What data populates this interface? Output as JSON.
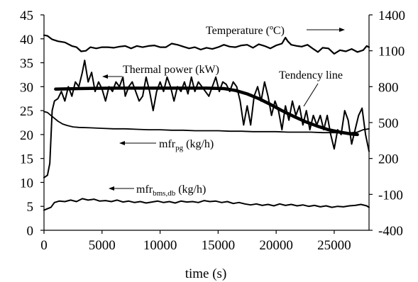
{
  "chart_data": {
    "type": "line",
    "xlabel": "time (s)",
    "x_ticks": [
      "0",
      "5000",
      "10000",
      "15000",
      "20000",
      "25000"
    ],
    "y_left_ticks": [
      "0",
      "5",
      "10",
      "15",
      "20",
      "25",
      "30",
      "35",
      "40",
      "45"
    ],
    "y_right_ticks": [
      "-400",
      "-100",
      "200",
      "500",
      "800",
      "1100",
      "1400"
    ],
    "xlim": [
      0,
      28000
    ],
    "ylim_left": [
      0,
      45
    ],
    "ylim_right": [
      -400,
      1400
    ],
    "grid": false,
    "annotations": {
      "temperature": "Temperature (ºC)",
      "thermal_power": "Thermal power (kW)",
      "tendency": "Tendency line",
      "mfr_pg_main": "mfr",
      "mfr_pg_sub": "pg",
      "mfr_pg_unit": " (kg/h)",
      "mfr_bms_main": "mfr",
      "mfr_bms_sub": "bms,db",
      "mfr_bms_unit": " (kg/h)"
    },
    "series": [
      {
        "axis": "right",
        "stroke": 2.2,
        "points": [
          [
            0,
            1230
          ],
          [
            300,
            1225
          ],
          [
            700,
            1195
          ],
          [
            1200,
            1180
          ],
          [
            1800,
            1170
          ],
          [
            2400,
            1140
          ],
          [
            2800,
            1130
          ],
          [
            3200,
            1095
          ],
          [
            3600,
            1100
          ],
          [
            4000,
            1130
          ],
          [
            4500,
            1120
          ],
          [
            5000,
            1130
          ],
          [
            5500,
            1130
          ],
          [
            6000,
            1125
          ],
          [
            6500,
            1135
          ],
          [
            7000,
            1140
          ],
          [
            7500,
            1120
          ],
          [
            8000,
            1140
          ],
          [
            8500,
            1130
          ],
          [
            9000,
            1140
          ],
          [
            9500,
            1145
          ],
          [
            10000,
            1130
          ],
          [
            10500,
            1130
          ],
          [
            11000,
            1160
          ],
          [
            11500,
            1150
          ],
          [
            12000,
            1135
          ],
          [
            12500,
            1120
          ],
          [
            13000,
            1130
          ],
          [
            13500,
            1110
          ],
          [
            14000,
            1125
          ],
          [
            14500,
            1115
          ],
          [
            15000,
            1130
          ],
          [
            15500,
            1150
          ],
          [
            16000,
            1135
          ],
          [
            16500,
            1130
          ],
          [
            17000,
            1145
          ],
          [
            17500,
            1150
          ],
          [
            18000,
            1125
          ],
          [
            18500,
            1155
          ],
          [
            19000,
            1140
          ],
          [
            19500,
            1120
          ],
          [
            20000,
            1145
          ],
          [
            20500,
            1160
          ],
          [
            20800,
            1210
          ],
          [
            21000,
            1180
          ],
          [
            21300,
            1150
          ],
          [
            21800,
            1140
          ],
          [
            22200,
            1135
          ],
          [
            22700,
            1150
          ],
          [
            23200,
            1115
          ],
          [
            23600,
            1090
          ],
          [
            24000,
            1125
          ],
          [
            24500,
            1120
          ],
          [
            25000,
            1075
          ],
          [
            25500,
            1105
          ],
          [
            26000,
            1095
          ],
          [
            26500,
            1115
          ],
          [
            27000,
            1090
          ],
          [
            27500,
            1105
          ],
          [
            27800,
            1140
          ],
          [
            28000,
            1130
          ]
        ]
      },
      {
        "axis": "left",
        "stroke": 2.0,
        "points": [
          [
            0,
            11
          ],
          [
            300,
            11.5
          ],
          [
            500,
            14
          ],
          [
            700,
            25
          ],
          [
            900,
            27
          ],
          [
            1200,
            27.5
          ],
          [
            1500,
            29
          ],
          [
            1800,
            27
          ],
          [
            2100,
            30
          ],
          [
            2400,
            28
          ],
          [
            2700,
            31
          ],
          [
            3000,
            30
          ],
          [
            3300,
            33
          ],
          [
            3500,
            35.5
          ],
          [
            3800,
            31
          ],
          [
            4100,
            33
          ],
          [
            4400,
            29
          ],
          [
            4700,
            31
          ],
          [
            5000,
            29.5
          ],
          [
            5300,
            27
          ],
          [
            5600,
            30
          ],
          [
            5900,
            29
          ],
          [
            6200,
            31
          ],
          [
            6500,
            30
          ],
          [
            6800,
            32
          ],
          [
            7000,
            28
          ],
          [
            7300,
            30
          ],
          [
            7600,
            31
          ],
          [
            7900,
            29
          ],
          [
            8200,
            27
          ],
          [
            8500,
            28
          ],
          [
            8800,
            32
          ],
          [
            9100,
            29
          ],
          [
            9400,
            25
          ],
          [
            9700,
            29
          ],
          [
            10000,
            31
          ],
          [
            10300,
            29
          ],
          [
            10600,
            32
          ],
          [
            10900,
            30
          ],
          [
            11200,
            27
          ],
          [
            11500,
            30
          ],
          [
            11800,
            29
          ],
          [
            12100,
            31
          ],
          [
            12400,
            28.5
          ],
          [
            12700,
            32
          ],
          [
            13000,
            29
          ],
          [
            13300,
            31
          ],
          [
            13600,
            30
          ],
          [
            13900,
            29
          ],
          [
            14200,
            28
          ],
          [
            14500,
            30
          ],
          [
            14800,
            32
          ],
          [
            15100,
            29
          ],
          [
            15400,
            31
          ],
          [
            15700,
            30.5
          ],
          [
            16000,
            29
          ],
          [
            16300,
            31
          ],
          [
            16600,
            30
          ],
          [
            16900,
            27
          ],
          [
            17200,
            22
          ],
          [
            17500,
            26
          ],
          [
            17800,
            22
          ],
          [
            18100,
            28
          ],
          [
            18400,
            30
          ],
          [
            18700,
            27
          ],
          [
            19000,
            31
          ],
          [
            19300,
            28
          ],
          [
            19600,
            24
          ],
          [
            19900,
            27
          ],
          [
            20200,
            25
          ],
          [
            20500,
            21
          ],
          [
            20800,
            26
          ],
          [
            21100,
            23
          ],
          [
            21400,
            27
          ],
          [
            21700,
            24
          ],
          [
            22000,
            26
          ],
          [
            22300,
            22
          ],
          [
            22600,
            25
          ],
          [
            22900,
            21
          ],
          [
            23200,
            24
          ],
          [
            23500,
            22
          ],
          [
            23800,
            24
          ],
          [
            24100,
            21
          ],
          [
            24400,
            24
          ],
          [
            24700,
            20
          ],
          [
            25000,
            17
          ],
          [
            25300,
            21
          ],
          [
            25600,
            20
          ],
          [
            25900,
            25
          ],
          [
            26200,
            23
          ],
          [
            26500,
            18
          ],
          [
            26800,
            21
          ],
          [
            27100,
            24
          ],
          [
            27400,
            25.5
          ],
          [
            27700,
            20
          ],
          [
            28000,
            16.5
          ]
        ]
      },
      {
        "axis": "left",
        "stroke": 4.5,
        "points": [
          [
            1000,
            29.5
          ],
          [
            3000,
            29.6
          ],
          [
            6000,
            29.7
          ],
          [
            9000,
            29.7
          ],
          [
            12000,
            29.7
          ],
          [
            14000,
            29.7
          ],
          [
            15500,
            29.6
          ],
          [
            16500,
            29.2
          ],
          [
            17500,
            28.5
          ],
          [
            18500,
            27.5
          ],
          [
            19500,
            26.3
          ],
          [
            20500,
            25.0
          ],
          [
            21500,
            23.8
          ],
          [
            22500,
            22.7
          ],
          [
            23500,
            21.8
          ],
          [
            24500,
            21.0
          ],
          [
            25500,
            20.5
          ],
          [
            26500,
            20.1
          ],
          [
            27000,
            20.0
          ]
        ]
      },
      {
        "axis": "left",
        "stroke": 1.8,
        "points": [
          [
            0,
            24.8
          ],
          [
            300,
            24.6
          ],
          [
            600,
            24
          ],
          [
            900,
            23.4
          ],
          [
            1200,
            22.8
          ],
          [
            1600,
            22.2
          ],
          [
            2000,
            21.9
          ],
          [
            2500,
            21.6
          ],
          [
            3000,
            21.5
          ],
          [
            4000,
            21.4
          ],
          [
            5000,
            21.3
          ],
          [
            6000,
            21.2
          ],
          [
            7000,
            21.2
          ],
          [
            8000,
            21.1
          ],
          [
            9000,
            21.0
          ],
          [
            10000,
            21.0
          ],
          [
            11000,
            20.9
          ],
          [
            12000,
            20.9
          ],
          [
            13000,
            20.8
          ],
          [
            14000,
            20.8
          ],
          [
            15000,
            20.8
          ],
          [
            16000,
            20.7
          ],
          [
            17000,
            20.7
          ],
          [
            18000,
            20.6
          ],
          [
            19000,
            20.6
          ],
          [
            20000,
            20.6
          ],
          [
            21000,
            20.5
          ],
          [
            22000,
            20.5
          ],
          [
            23000,
            20.5
          ],
          [
            24000,
            20.4
          ],
          [
            25000,
            20.4
          ],
          [
            26000,
            20.3
          ],
          [
            27000,
            20.5
          ],
          [
            27500,
            21.0
          ],
          [
            28000,
            21.2
          ]
        ]
      },
      {
        "axis": "left",
        "stroke": 2.0,
        "points": [
          [
            0,
            4.2
          ],
          [
            300,
            4.5
          ],
          [
            600,
            4.8
          ],
          [
            900,
            5.8
          ],
          [
            1300,
            6.1
          ],
          [
            1800,
            6.0
          ],
          [
            2300,
            6.3
          ],
          [
            2800,
            6.0
          ],
          [
            3300,
            6.6
          ],
          [
            3800,
            6.3
          ],
          [
            4300,
            6.5
          ],
          [
            4800,
            6.1
          ],
          [
            5300,
            6.2
          ],
          [
            5800,
            6.0
          ],
          [
            6300,
            6.3
          ],
          [
            6800,
            5.9
          ],
          [
            7300,
            6.1
          ],
          [
            7800,
            5.8
          ],
          [
            8300,
            6.0
          ],
          [
            8800,
            5.7
          ],
          [
            9300,
            5.9
          ],
          [
            9800,
            6.1
          ],
          [
            10300,
            5.8
          ],
          [
            10800,
            6.0
          ],
          [
            11300,
            5.7
          ],
          [
            11800,
            6.1
          ],
          [
            12300,
            5.9
          ],
          [
            12800,
            6.0
          ],
          [
            13300,
            5.8
          ],
          [
            13800,
            6.2
          ],
          [
            14300,
            6.0
          ],
          [
            14800,
            6.1
          ],
          [
            15300,
            5.8
          ],
          [
            15800,
            6.0
          ],
          [
            16300,
            5.6
          ],
          [
            16800,
            5.8
          ],
          [
            17300,
            5.5
          ],
          [
            17800,
            5.3
          ],
          [
            18300,
            5.5
          ],
          [
            18800,
            5.2
          ],
          [
            19300,
            5.4
          ],
          [
            19800,
            5.1
          ],
          [
            20300,
            5.5
          ],
          [
            20800,
            5.2
          ],
          [
            21300,
            5.4
          ],
          [
            21800,
            5.1
          ],
          [
            22300,
            5.3
          ],
          [
            22800,
            5.0
          ],
          [
            23300,
            5.2
          ],
          [
            23800,
            4.9
          ],
          [
            24300,
            5.1
          ],
          [
            24800,
            4.8
          ],
          [
            25300,
            5.0
          ],
          [
            25800,
            4.9
          ],
          [
            26300,
            5.1
          ],
          [
            26800,
            5.2
          ],
          [
            27300,
            5.4
          ],
          [
            27800,
            5.1
          ],
          [
            28000,
            4.8
          ]
        ]
      }
    ]
  }
}
